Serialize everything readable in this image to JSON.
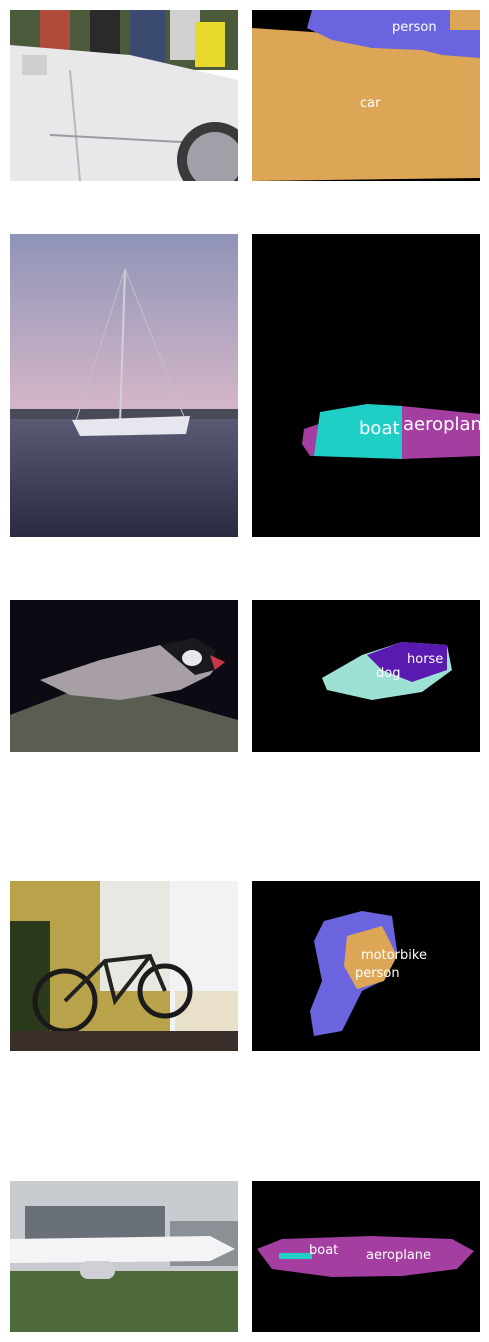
{
  "colors": {
    "car": "#dca656",
    "person": "#6a65df",
    "boat": "#1fcfc5",
    "aeroplane": "#a43ea0",
    "dog": "#9de1d5",
    "horse": "#5a19b0",
    "motorbike": "#6a65df",
    "background": "#000000"
  },
  "rows": [
    {
      "photo": "car-crowd-photo",
      "labels": {
        "person": "person",
        "car": "car"
      }
    },
    {
      "photo": "sailboat-photo",
      "labels": {
        "boat": "boat",
        "aeroplane": "aeroplane"
      }
    },
    {
      "photo": "bird-photo",
      "labels": {
        "horse": "horse",
        "dog": "dog"
      }
    },
    {
      "photo": "bicycle-room-photo",
      "labels": {
        "motorbike": "motorbike",
        "person": "person"
      }
    },
    {
      "photo": "airplane-photo",
      "labels": {
        "boat": "boat",
        "aeroplane": "aeroplane"
      }
    }
  ]
}
